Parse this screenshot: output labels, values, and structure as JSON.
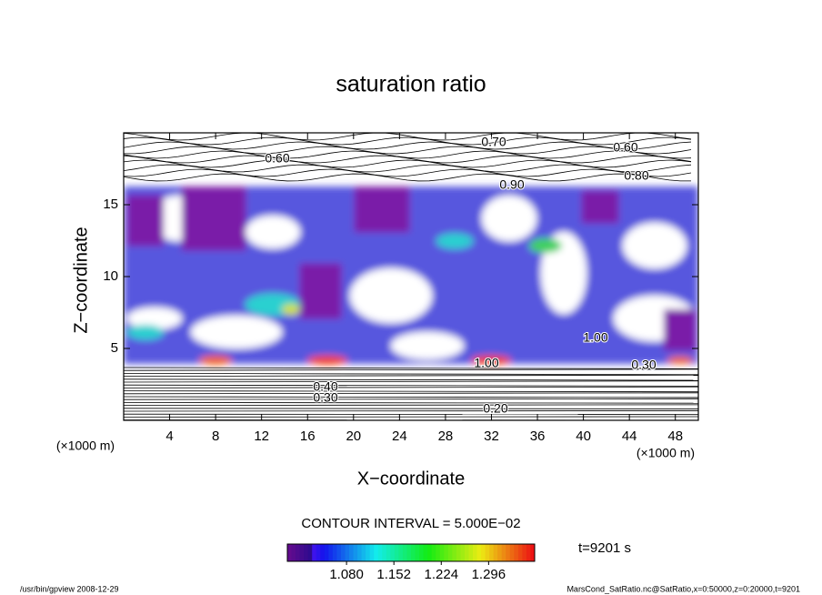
{
  "chart_data": {
    "type": "contour",
    "title": "saturation ratio",
    "x_label": "X−coordinate",
    "y_label": "Z−coordinate",
    "x_unit": "(×1000 m)",
    "y_unit": "(×1000 m)",
    "xlim": [
      0,
      50
    ],
    "ylim": [
      0,
      20
    ],
    "xticks": [
      4,
      8,
      12,
      16,
      20,
      24,
      28,
      32,
      36,
      40,
      44,
      48
    ],
    "yticks": [
      5,
      10,
      15
    ],
    "contour_labels": [
      "0.70",
      "0.60",
      "0.60",
      "0.80",
      "0.90",
      "0.20",
      "0.30",
      "0.40",
      "1.00",
      "1.00",
      "0.30"
    ],
    "contour_interval": "CONTOUR INTERVAL = 5.000E−02",
    "colorbar_lim": [
      0.99,
      1.366
    ],
    "colorbar_ticks": [
      {
        "value": 1.08,
        "label": "1.080"
      },
      {
        "value": 1.152,
        "label": "1.152"
      },
      {
        "value": 1.224,
        "label": "1.224"
      },
      {
        "value": 1.296,
        "label": "1.296"
      }
    ],
    "time_label": "t=9201 s",
    "footer_left": "/usr/bin/gpview   2008-12-29",
    "footer_right": "MarsCond_SatRatio.nc@SatRatio,x=0:50000,z=0:20000,t=9201"
  }
}
